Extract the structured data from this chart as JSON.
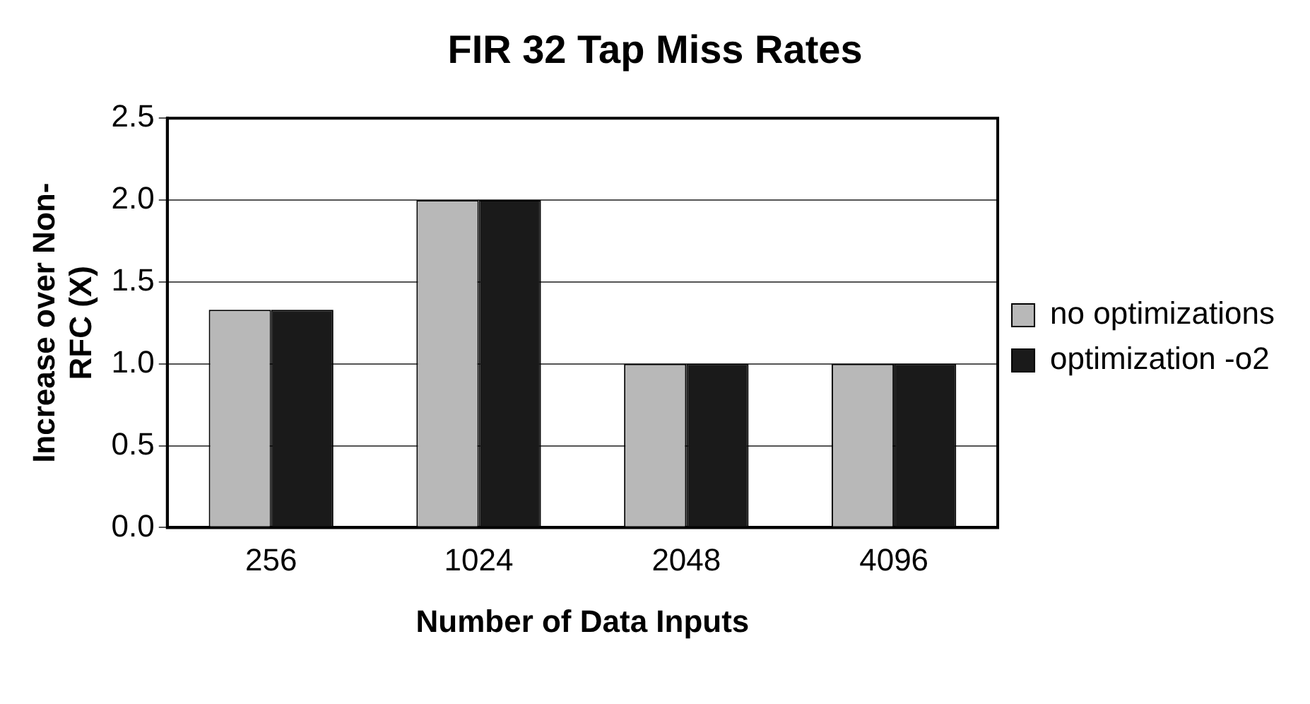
{
  "chart_data": {
    "type": "bar",
    "title": "FIR 32 Tap Miss Rates",
    "xlabel": "Number of Data Inputs",
    "ylabel": "Increase over Non-RFC (X)",
    "categories": [
      "256",
      "1024",
      "2048",
      "4096"
    ],
    "series": [
      {
        "name": "no optimizations",
        "color": "#b8b8b8",
        "values": [
          1.33,
          2.0,
          1.0,
          1.0
        ]
      },
      {
        "name": "optimization -o2",
        "color": "#1a1a1a",
        "values": [
          1.33,
          2.0,
          1.0,
          1.0
        ]
      }
    ],
    "ylim": [
      0,
      2.5
    ],
    "yticks": [
      {
        "value": 0,
        "label": "0.0"
      },
      {
        "value": 0.5,
        "label": "0.5"
      },
      {
        "value": 1,
        "label": "1.0"
      },
      {
        "value": 1.5,
        "label": "1.5"
      },
      {
        "value": 2,
        "label": "2.0"
      },
      {
        "value": 2.5,
        "label": "2.5"
      }
    ],
    "grid": "y",
    "legend": "right"
  }
}
